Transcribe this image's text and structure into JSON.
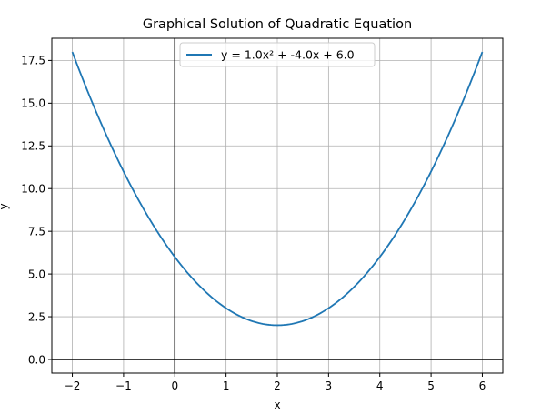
{
  "chart_data": {
    "type": "line",
    "title": "Graphical Solution of Quadratic Equation",
    "xlabel": "x",
    "ylabel": "y",
    "xlim": [
      -2.4,
      6.4
    ],
    "ylim": [
      -0.8,
      18.8
    ],
    "grid": true,
    "legend_position": "top-center",
    "xticks": [
      -2,
      -1,
      0,
      1,
      2,
      3,
      4,
      5,
      6
    ],
    "xtick_labels": [
      "−2",
      "−1",
      "0",
      "1",
      "2",
      "3",
      "4",
      "5",
      "6"
    ],
    "yticks": [
      0.0,
      2.5,
      5.0,
      7.5,
      10.0,
      12.5,
      15.0,
      17.5
    ],
    "ytick_labels": [
      "0.0",
      "2.5",
      "5.0",
      "7.5",
      "10.0",
      "12.5",
      "15.0",
      "17.5"
    ],
    "reference_lines": {
      "x": 0,
      "y": 0
    },
    "series": [
      {
        "name": "y = 1.0x² + -4.0x + 6.0",
        "color": "#1f77b4",
        "x": [
          -2.0,
          -1.5,
          -1.0,
          -0.5,
          0.0,
          0.5,
          1.0,
          1.5,
          2.0,
          2.5,
          3.0,
          3.5,
          4.0,
          4.5,
          5.0,
          5.5,
          6.0
        ],
        "y": [
          18.0,
          14.25,
          11.0,
          8.25,
          6.0,
          4.25,
          3.0,
          2.25,
          2.0,
          2.25,
          3.0,
          4.25,
          6.0,
          8.25,
          11.0,
          14.25,
          18.0
        ]
      }
    ]
  }
}
